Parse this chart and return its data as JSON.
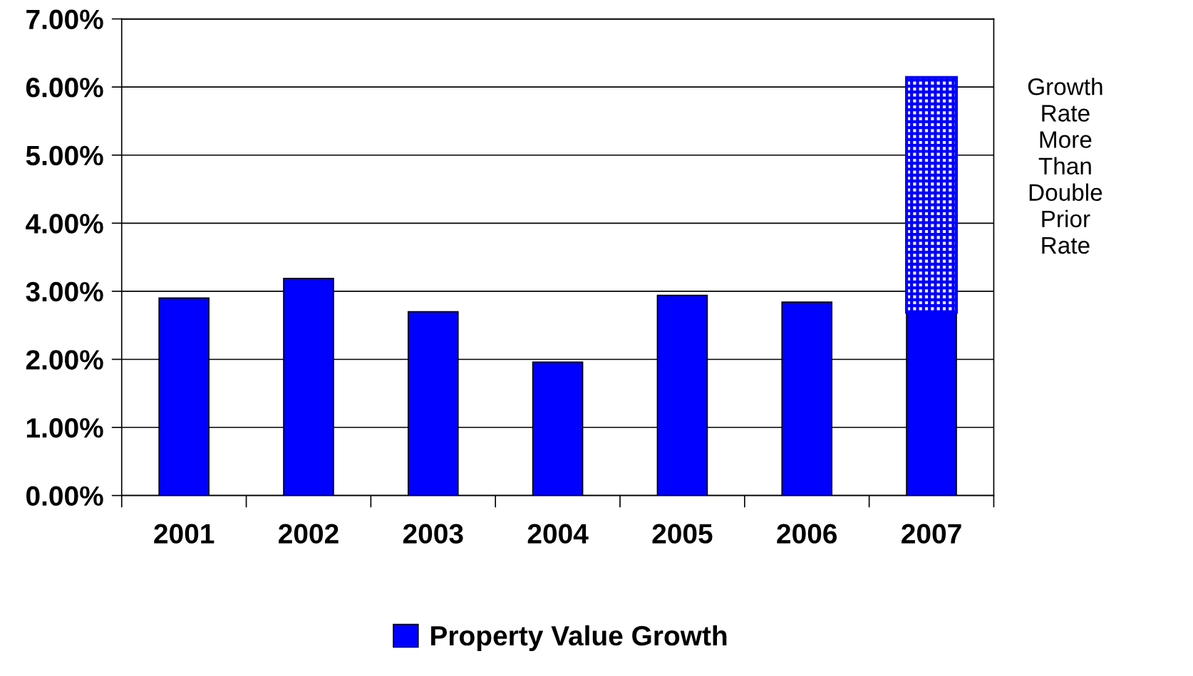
{
  "chart_data": {
    "type": "bar",
    "stacked": true,
    "categories": [
      "2001",
      "2002",
      "2003",
      "2004",
      "2005",
      "2006",
      "2007"
    ],
    "series": [
      {
        "name": "Property Value Growth",
        "color": "#0000ff",
        "values": [
          2.9,
          3.19,
          2.7,
          1.96,
          2.94,
          2.84,
          2.69
        ]
      },
      {
        "color": "#0000ff",
        "values": [
          null,
          null,
          null,
          null,
          null,
          null,
          3.45
        ]
      }
    ],
    "ylim": [
      0,
      7
    ],
    "yticks": [
      {
        "value": 0,
        "label": "0.00%"
      },
      {
        "value": 1,
        "label": "1.00%"
      },
      {
        "value": 2,
        "label": "2.00%"
      },
      {
        "value": 3,
        "label": "3.00%"
      },
      {
        "value": 4,
        "label": "4.00%"
      },
      {
        "value": 5,
        "label": "5.00%"
      },
      {
        "value": 6,
        "label": "6.00%"
      },
      {
        "value": 7,
        "label": "7.00%"
      }
    ],
    "grid": "y",
    "legend": "bottom",
    "annotations": [
      "Growth\nRate\nMore\nThan\nDouble\nPrior\nRate"
    ]
  }
}
